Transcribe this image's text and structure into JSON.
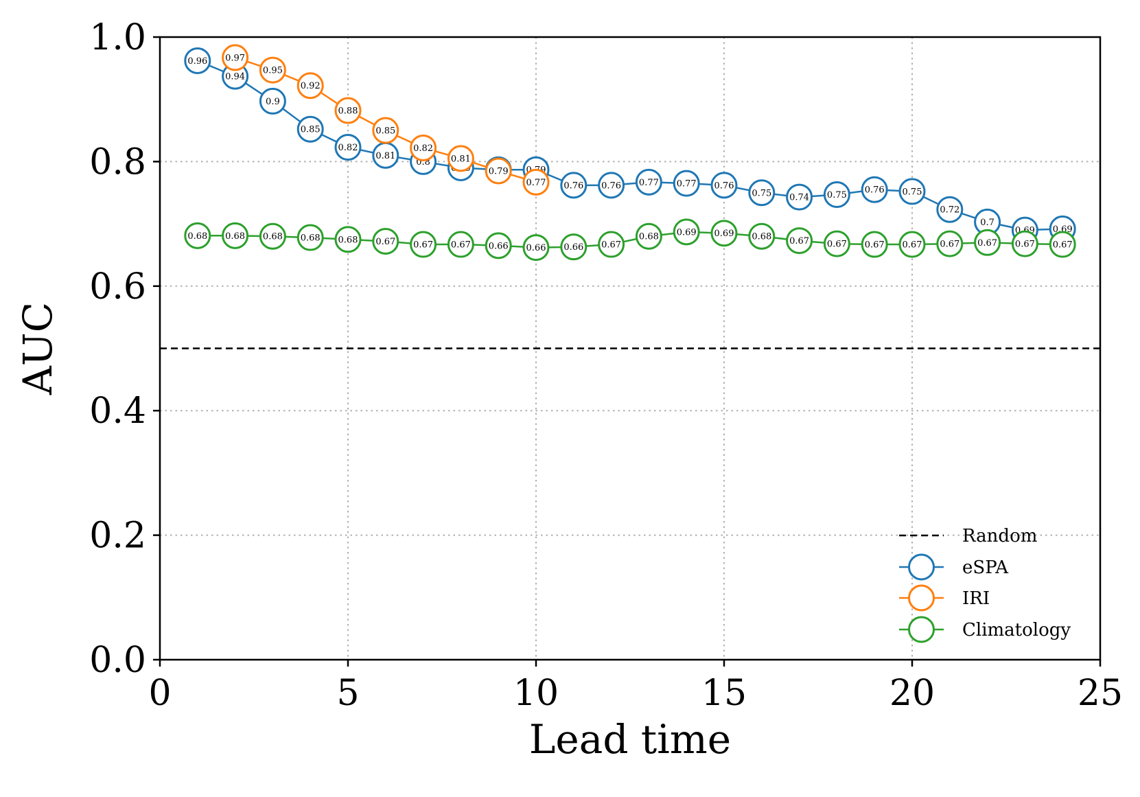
{
  "chart_data": {
    "type": "line",
    "title": "",
    "xlabel": "Lead time",
    "ylabel": "AUC",
    "xlim": [
      0,
      25
    ],
    "ylim": [
      0,
      1
    ],
    "xticks": [
      0,
      5,
      10,
      15,
      20,
      25
    ],
    "xtick_labels": [
      "0",
      "5",
      "10",
      "15",
      "20",
      "25"
    ],
    "yticks": [
      0,
      0.2,
      0.4,
      0.6,
      0.8,
      1
    ],
    "ytick_labels": [
      "0.0",
      "0.2",
      "0.4",
      "0.6",
      "0.8",
      "1.0"
    ],
    "grid": true,
    "legend_position": "lower-right",
    "reference_line": {
      "name": "Random",
      "y": 0.5,
      "color": "#000000",
      "style": "dashed"
    },
    "series": [
      {
        "name": "eSPA",
        "color": "#1f77b4",
        "x": [
          1,
          2,
          3,
          4,
          5,
          6,
          7,
          8,
          9,
          10,
          11,
          12,
          13,
          14,
          15,
          16,
          17,
          18,
          19,
          20,
          21,
          22,
          23,
          24
        ],
        "values": [
          0.962,
          0.937,
          0.897,
          0.852,
          0.823,
          0.81,
          0.8,
          0.79,
          0.787,
          0.787,
          0.762,
          0.762,
          0.767,
          0.765,
          0.762,
          0.75,
          0.743,
          0.747,
          0.755,
          0.752,
          0.723,
          0.703,
          0.69,
          0.692
        ],
        "labels": [
          "0.96",
          "0.94",
          "0.9",
          "0.85",
          "0.82",
          "0.81",
          "0.8",
          "0.79",
          "0.79",
          "0.79",
          "0.76",
          "0.76",
          "0.77",
          "0.77",
          "0.76",
          "0.75",
          "0.74",
          "0.75",
          "0.76",
          "0.75",
          "0.72",
          "0.7",
          "0.69",
          "0.69"
        ]
      },
      {
        "name": "IRI",
        "color": "#ff7f0e",
        "x": [
          2,
          3,
          4,
          5,
          6,
          7,
          8,
          9,
          10
        ],
        "values": [
          0.967,
          0.947,
          0.922,
          0.882,
          0.85,
          0.822,
          0.805,
          0.785,
          0.767
        ],
        "labels": [
          "0.97",
          "0.95",
          "0.92",
          "0.88",
          "0.85",
          "0.82",
          "0.81",
          "0.79",
          "0.77"
        ]
      },
      {
        "name": "Climatology",
        "color": "#2ca02c",
        "x": [
          1,
          2,
          3,
          4,
          5,
          6,
          7,
          8,
          9,
          10,
          11,
          12,
          13,
          14,
          15,
          16,
          17,
          18,
          19,
          20,
          21,
          22,
          23,
          24
        ],
        "values": [
          0.681,
          0.681,
          0.68,
          0.678,
          0.675,
          0.672,
          0.667,
          0.667,
          0.665,
          0.662,
          0.663,
          0.667,
          0.68,
          0.687,
          0.685,
          0.68,
          0.673,
          0.668,
          0.667,
          0.667,
          0.668,
          0.67,
          0.668,
          0.667
        ],
        "labels": [
          "0.68",
          "0.68",
          "0.68",
          "0.68",
          "0.68",
          "0.67",
          "0.67",
          "0.67",
          "0.66",
          "0.66",
          "0.66",
          "0.67",
          "0.68",
          "0.69",
          "0.69",
          "0.68",
          "0.67",
          "0.67",
          "0.67",
          "0.67",
          "0.67",
          "0.67",
          "0.67",
          "0.67"
        ]
      }
    ]
  }
}
